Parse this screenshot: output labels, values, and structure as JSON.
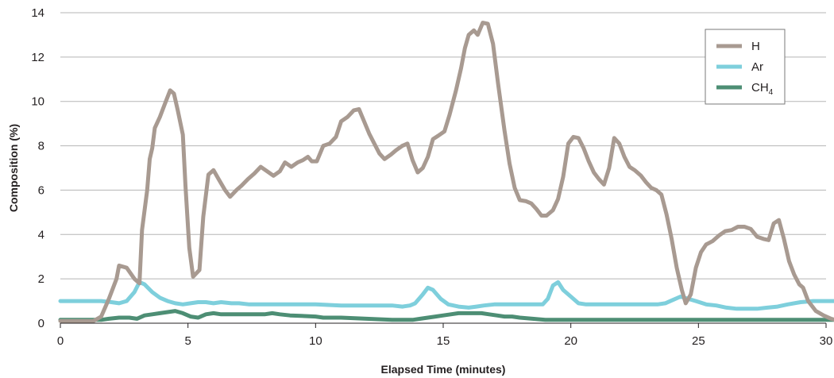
{
  "chart_data": {
    "type": "line",
    "title": "",
    "xlabel": "Elapsed Time (minutes)",
    "ylabel": "Composition (%)",
    "xlim": [
      0,
      30
    ],
    "ylim": [
      0,
      14
    ],
    "xticks": [
      0,
      5,
      10,
      15,
      20,
      25,
      30
    ],
    "yticks": [
      0,
      2,
      4,
      6,
      8,
      10,
      12,
      14
    ],
    "grid": "horizontal",
    "legend_position": "top-right",
    "series": [
      {
        "name": "H",
        "color": "#a89a91",
        "points": [
          [
            0,
            0.1
          ],
          [
            1.3,
            0.1
          ],
          [
            1.6,
            0.3
          ],
          [
            1.9,
            1.1
          ],
          [
            2.2,
            2
          ],
          [
            2.3,
            2.6
          ],
          [
            2.6,
            2.5
          ],
          [
            2.9,
            2.0
          ],
          [
            3.1,
            1.8
          ],
          [
            3.2,
            4.2
          ],
          [
            3.4,
            6.0
          ],
          [
            3.5,
            7.4
          ],
          [
            3.6,
            7.9
          ],
          [
            3.7,
            8.8
          ],
          [
            3.9,
            9.3
          ],
          [
            4.1,
            9.9
          ],
          [
            4.3,
            10.5
          ],
          [
            4.45,
            10.35
          ],
          [
            4.6,
            9.6
          ],
          [
            4.8,
            8.5
          ],
          [
            4.9,
            6.2
          ],
          [
            5.05,
            3.4
          ],
          [
            5.2,
            2.1
          ],
          [
            5.45,
            2.4
          ],
          [
            5.6,
            4.8
          ],
          [
            5.8,
            6.7
          ],
          [
            6.0,
            6.9
          ],
          [
            6.2,
            6.5
          ],
          [
            6.45,
            6.0
          ],
          [
            6.65,
            5.7
          ],
          [
            6.9,
            6.0
          ],
          [
            7.1,
            6.2
          ],
          [
            7.35,
            6.5
          ],
          [
            7.6,
            6.75
          ],
          [
            7.85,
            7.05
          ],
          [
            8.1,
            6.85
          ],
          [
            8.35,
            6.65
          ],
          [
            8.6,
            6.85
          ],
          [
            8.8,
            7.25
          ],
          [
            9.05,
            7.05
          ],
          [
            9.3,
            7.25
          ],
          [
            9.5,
            7.35
          ],
          [
            9.7,
            7.5
          ],
          [
            9.85,
            7.3
          ],
          [
            10.05,
            7.3
          ],
          [
            10.3,
            8.0
          ],
          [
            10.55,
            8.1
          ],
          [
            10.8,
            8.4
          ],
          [
            11.0,
            9.1
          ],
          [
            11.25,
            9.3
          ],
          [
            11.5,
            9.6
          ],
          [
            11.7,
            9.65
          ],
          [
            11.9,
            9.1
          ],
          [
            12.1,
            8.55
          ],
          [
            12.3,
            8.1
          ],
          [
            12.5,
            7.65
          ],
          [
            12.7,
            7.4
          ],
          [
            12.95,
            7.6
          ],
          [
            13.15,
            7.8
          ],
          [
            13.4,
            8.0
          ],
          [
            13.6,
            8.1
          ],
          [
            13.8,
            7.35
          ],
          [
            14.0,
            6.8
          ],
          [
            14.2,
            7.0
          ],
          [
            14.4,
            7.5
          ],
          [
            14.6,
            8.3
          ],
          [
            14.8,
            8.45
          ],
          [
            15.05,
            8.65
          ],
          [
            15.25,
            9.4
          ],
          [
            15.5,
            10.5
          ],
          [
            15.7,
            11.5
          ],
          [
            15.85,
            12.4
          ],
          [
            16.0,
            13.0
          ],
          [
            16.2,
            13.2
          ],
          [
            16.35,
            13.0
          ],
          [
            16.55,
            13.55
          ],
          [
            16.75,
            13.5
          ],
          [
            16.95,
            12.6
          ],
          [
            17.15,
            10.8
          ],
          [
            17.4,
            8.7
          ],
          [
            17.6,
            7.2
          ],
          [
            17.8,
            6.1
          ],
          [
            18.0,
            5.55
          ],
          [
            18.25,
            5.5
          ],
          [
            18.45,
            5.4
          ],
          [
            18.65,
            5.15
          ],
          [
            18.85,
            4.85
          ],
          [
            19.05,
            4.85
          ],
          [
            19.3,
            5.1
          ],
          [
            19.5,
            5.6
          ],
          [
            19.7,
            6.6
          ],
          [
            19.9,
            8.1
          ],
          [
            20.1,
            8.4
          ],
          [
            20.3,
            8.35
          ],
          [
            20.5,
            7.9
          ],
          [
            20.7,
            7.3
          ],
          [
            20.9,
            6.8
          ],
          [
            21.1,
            6.5
          ],
          [
            21.3,
            6.25
          ],
          [
            21.5,
            7.0
          ],
          [
            21.7,
            8.35
          ],
          [
            21.9,
            8.1
          ],
          [
            22.1,
            7.5
          ],
          [
            22.3,
            7.05
          ],
          [
            22.5,
            6.9
          ],
          [
            22.75,
            6.65
          ],
          [
            22.95,
            6.35
          ],
          [
            23.15,
            6.1
          ],
          [
            23.35,
            6.0
          ],
          [
            23.55,
            5.8
          ],
          [
            23.75,
            4.9
          ],
          [
            23.95,
            3.8
          ],
          [
            24.15,
            2.5
          ],
          [
            24.35,
            1.5
          ],
          [
            24.5,
            0.9
          ],
          [
            24.7,
            1.3
          ],
          [
            24.9,
            2.5
          ],
          [
            25.1,
            3.2
          ],
          [
            25.3,
            3.55
          ],
          [
            25.55,
            3.7
          ],
          [
            25.8,
            3.95
          ],
          [
            26.05,
            4.15
          ],
          [
            26.3,
            4.2
          ],
          [
            26.55,
            4.35
          ],
          [
            26.8,
            4.35
          ],
          [
            27.05,
            4.25
          ],
          [
            27.3,
            3.9
          ],
          [
            27.55,
            3.8
          ],
          [
            27.75,
            3.75
          ],
          [
            27.95,
            4.5
          ],
          [
            28.15,
            4.65
          ],
          [
            28.35,
            3.8
          ],
          [
            28.55,
            2.8
          ],
          [
            28.75,
            2.2
          ],
          [
            28.95,
            1.75
          ],
          [
            29.1,
            1.6
          ],
          [
            29.3,
            1.0
          ],
          [
            29.6,
            0.55
          ],
          [
            29.9,
            0.35
          ],
          [
            30.2,
            0.2
          ],
          [
            30.5,
            0.1
          ],
          [
            31.7,
            0.08
          ]
        ]
      },
      {
        "name": "Ar",
        "color": "#7ecfdc",
        "points": [
          [
            0,
            1.0
          ],
          [
            1.6,
            1.0
          ],
          [
            2.0,
            0.95
          ],
          [
            2.3,
            0.9
          ],
          [
            2.6,
            1.0
          ],
          [
            2.9,
            1.4
          ],
          [
            3.1,
            1.85
          ],
          [
            3.3,
            1.75
          ],
          [
            3.6,
            1.4
          ],
          [
            3.9,
            1.15
          ],
          [
            4.2,
            1.0
          ],
          [
            4.5,
            0.9
          ],
          [
            4.8,
            0.85
          ],
          [
            5.1,
            0.9
          ],
          [
            5.4,
            0.95
          ],
          [
            5.7,
            0.95
          ],
          [
            6.0,
            0.9
          ],
          [
            6.3,
            0.95
          ],
          [
            6.7,
            0.9
          ],
          [
            7.0,
            0.9
          ],
          [
            7.4,
            0.85
          ],
          [
            8,
            0.85
          ],
          [
            9,
            0.85
          ],
          [
            10,
            0.85
          ],
          [
            11,
            0.8
          ],
          [
            12,
            0.8
          ],
          [
            13,
            0.8
          ],
          [
            13.4,
            0.75
          ],
          [
            13.7,
            0.8
          ],
          [
            13.9,
            0.9
          ],
          [
            14.2,
            1.3
          ],
          [
            14.4,
            1.6
          ],
          [
            14.6,
            1.5
          ],
          [
            14.9,
            1.1
          ],
          [
            15.2,
            0.85
          ],
          [
            15.6,
            0.75
          ],
          [
            16.0,
            0.7
          ],
          [
            16.3,
            0.75
          ],
          [
            16.6,
            0.8
          ],
          [
            17.0,
            0.85
          ],
          [
            17.4,
            0.85
          ],
          [
            17.7,
            0.85
          ],
          [
            18.0,
            0.85
          ],
          [
            18.3,
            0.85
          ],
          [
            18.6,
            0.85
          ],
          [
            18.9,
            0.85
          ],
          [
            19.1,
            1.1
          ],
          [
            19.3,
            1.7
          ],
          [
            19.5,
            1.85
          ],
          [
            19.7,
            1.5
          ],
          [
            20.0,
            1.2
          ],
          [
            20.3,
            0.9
          ],
          [
            20.6,
            0.85
          ],
          [
            21.0,
            0.85
          ],
          [
            22,
            0.85
          ],
          [
            23,
            0.85
          ],
          [
            23.4,
            0.85
          ],
          [
            23.7,
            0.9
          ],
          [
            24.0,
            1.05
          ],
          [
            24.3,
            1.2
          ],
          [
            24.6,
            1.1
          ],
          [
            24.9,
            1.0
          ],
          [
            25.3,
            0.85
          ],
          [
            25.7,
            0.8
          ],
          [
            26.1,
            0.7
          ],
          [
            26.5,
            0.65
          ],
          [
            26.9,
            0.65
          ],
          [
            27.3,
            0.65
          ],
          [
            27.7,
            0.7
          ],
          [
            28.1,
            0.75
          ],
          [
            28.5,
            0.85
          ],
          [
            29,
            0.95
          ],
          [
            29.5,
            1.0
          ],
          [
            30,
            1.0
          ],
          [
            31,
            1.0
          ],
          [
            31.7,
            1.0
          ]
        ]
      },
      {
        "name": "CH4",
        "color": "#4d8e74",
        "points": [
          [
            0,
            0.15
          ],
          [
            1.6,
            0.15
          ],
          [
            1.9,
            0.2
          ],
          [
            2.3,
            0.25
          ],
          [
            2.7,
            0.25
          ],
          [
            3.0,
            0.2
          ],
          [
            3.3,
            0.35
          ],
          [
            3.6,
            0.4
          ],
          [
            3.9,
            0.45
          ],
          [
            4.2,
            0.5
          ],
          [
            4.5,
            0.55
          ],
          [
            4.8,
            0.45
          ],
          [
            5.1,
            0.3
          ],
          [
            5.4,
            0.25
          ],
          [
            5.7,
            0.4
          ],
          [
            6.0,
            0.45
          ],
          [
            6.3,
            0.4
          ],
          [
            6.6,
            0.4
          ],
          [
            7,
            0.4
          ],
          [
            8,
            0.4
          ],
          [
            8.3,
            0.45
          ],
          [
            8.6,
            0.4
          ],
          [
            9,
            0.35
          ],
          [
            10,
            0.3
          ],
          [
            10.3,
            0.25
          ],
          [
            11,
            0.25
          ],
          [
            12,
            0.2
          ],
          [
            13,
            0.15
          ],
          [
            13.8,
            0.15
          ],
          [
            14.1,
            0.2
          ],
          [
            14.4,
            0.25
          ],
          [
            14.7,
            0.3
          ],
          [
            15,
            0.35
          ],
          [
            15.3,
            0.4
          ],
          [
            15.6,
            0.45
          ],
          [
            15.9,
            0.45
          ],
          [
            16.2,
            0.45
          ],
          [
            16.5,
            0.45
          ],
          [
            16.8,
            0.4
          ],
          [
            17.1,
            0.35
          ],
          [
            17.4,
            0.3
          ],
          [
            17.7,
            0.3
          ],
          [
            18,
            0.25
          ],
          [
            18.5,
            0.2
          ],
          [
            19,
            0.15
          ],
          [
            20,
            0.15
          ],
          [
            22,
            0.15
          ],
          [
            25,
            0.15
          ],
          [
            28,
            0.15
          ],
          [
            30,
            0.15
          ],
          [
            31.7,
            0.15
          ]
        ]
      }
    ]
  }
}
